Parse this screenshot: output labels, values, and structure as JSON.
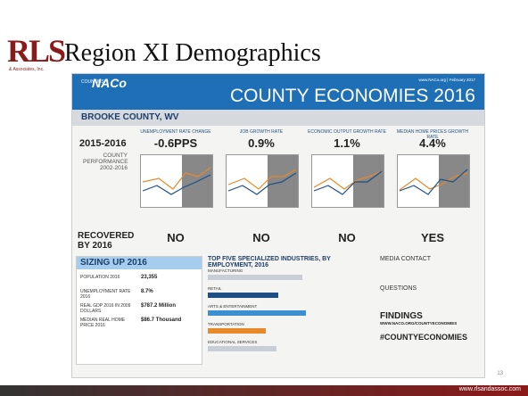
{
  "logo": {
    "mark": "RLS",
    "sub": "& Associates, Inc."
  },
  "slide_title": "Region XI Demographics",
  "infographic": {
    "brand": "NACo",
    "brand_sub": "COUNTIES",
    "title": "COUNTY ECONOMIES 2016",
    "date": "www.NACo.org | February 2017",
    "county": "BROOKE COUNTY, WV",
    "period": "2015-2016",
    "performance_label": "COUNTY PERFORMANCE 2002-2016",
    "recovered_label": "RECOVERED BY 2016",
    "indicators": [
      {
        "header": "UNEMPLOYMENT RATE CHANGE",
        "value": "-0.6PPS",
        "recovered": "NO"
      },
      {
        "header": "JOB GROWTH RATE",
        "value": "0.9%",
        "recovered": "NO"
      },
      {
        "header": "ECONOMIC OUTPUT GROWTH RATE",
        "value": "1.1%",
        "recovered": "NO"
      },
      {
        "header": "MEDIAN HOME PRICES GROWTH RATE",
        "value": "4.4%",
        "recovered": "YES"
      }
    ],
    "sizing": {
      "title": "SIZING UP 2016",
      "rows": [
        {
          "label": "POPULATION 2016",
          "value": "23,355"
        },
        {
          "label": "UNEMPLOYMENT RATE 2016",
          "value": "8.7%"
        },
        {
          "label": "REAL GDP 2016 IN 2009 DOLLARS",
          "value": "$787.2 Million"
        },
        {
          "label": "MEDIAN REAL HOME PRICE 2016",
          "value": "$86.7 Thousand"
        }
      ]
    },
    "industries": {
      "title": "TOP FIVE SPECIALIZED INDUSTRIES, BY EMPLOYMENT, 2016",
      "items": [
        {
          "name": "MANUFACTURING",
          "value": 9.4,
          "color": "#c9ced6"
        },
        {
          "name": "RETAIL",
          "value": 7.0,
          "color": "#1d4f86"
        },
        {
          "name": "ARTS & ENTERTAINMENT",
          "value": 9.8,
          "color": "#3d8fd1"
        },
        {
          "name": "TRANSPORTATION",
          "value": 5.8,
          "color": "#e8892b"
        },
        {
          "name": "EDUCATIONAL SERVICES",
          "value": 6.9,
          "color": "#c9ced6"
        }
      ]
    },
    "contact": {
      "media": "MEDIA CONTACT",
      "questions": "QUESTIONS",
      "findings": "FINDINGS",
      "url": "WWW.NACO.ORG/COUNTYECONOMIES",
      "hashtag": "#COUNTYECONOMIES"
    }
  },
  "page_number": "13",
  "footer_url": "www.rlsandassoc.com"
}
